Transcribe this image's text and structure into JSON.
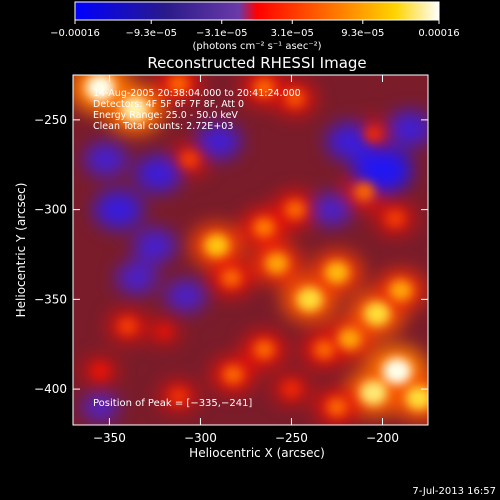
{
  "chart_data": {
    "type": "heatmap",
    "title": "Reconstructed RHESSI Image",
    "xlabel": "Heliocentric X (arcsec)",
    "ylabel": "Heliocentric Y (arcsec)",
    "xlim": [
      -370,
      -175
    ],
    "ylim": [
      -420,
      -225
    ],
    "xticks": [
      -350,
      -300,
      -250,
      -200
    ],
    "yticks": [
      -250,
      -300,
      -350,
      -400
    ],
    "xtick_labels": [
      "−350",
      "−300",
      "−250",
      "−200"
    ],
    "ytick_labels": [
      "−250",
      "−300",
      "−350",
      "−400"
    ],
    "colorbar": {
      "range": [
        -0.00016,
        0.00016
      ],
      "ticks": [
        -0.00016,
        -9.3e-05,
        -3.1e-05,
        3.1e-05,
        9.3e-05,
        0.00016
      ],
      "tick_labels": [
        "−0.00016",
        "−9.3e−05",
        "−3.1e−05",
        "3.1e−05",
        "9.3e−05",
        "0.00016"
      ],
      "units": "(photons cm⁻² s⁻¹ asec⁻²)"
    },
    "annotations": [
      "14-Aug-2005 20:38:04.000 to 20:41:24.000",
      "Detectors: 4F 5F 6F 7F 8F, Att 0",
      "Energy Range: 25.0 - 50.0 keV",
      "Clean    Total counts: 2.72E+03"
    ],
    "peak_label": "Position of Peak = [−335,−241]",
    "blobs": [
      {
        "x": -355,
        "y": -232,
        "v": 1.0
      },
      {
        "x": -336,
        "y": -244,
        "v": 0.95
      },
      {
        "x": -312,
        "y": -230,
        "v": 0.55
      },
      {
        "x": -306,
        "y": -272,
        "v": 0.45
      },
      {
        "x": -265,
        "y": -232,
        "v": 0.55
      },
      {
        "x": -248,
        "y": -238,
        "v": 0.5
      },
      {
        "x": -291,
        "y": -320,
        "v": 0.78
      },
      {
        "x": -283,
        "y": -338,
        "v": 0.55
      },
      {
        "x": -265,
        "y": -310,
        "v": 0.6
      },
      {
        "x": -258,
        "y": -330,
        "v": 0.7
      },
      {
        "x": -248,
        "y": -300,
        "v": 0.55
      },
      {
        "x": -240,
        "y": -350,
        "v": 0.85
      },
      {
        "x": -225,
        "y": -335,
        "v": 0.75
      },
      {
        "x": -218,
        "y": -372,
        "v": 0.7
      },
      {
        "x": -232,
        "y": -378,
        "v": 0.55
      },
      {
        "x": -203,
        "y": -358,
        "v": 0.85
      },
      {
        "x": -190,
        "y": -345,
        "v": 0.7
      },
      {
        "x": -192,
        "y": -390,
        "v": 1.0
      },
      {
        "x": -205,
        "y": -402,
        "v": 0.9
      },
      {
        "x": -180,
        "y": -405,
        "v": 0.85
      },
      {
        "x": -225,
        "y": -410,
        "v": 0.55
      },
      {
        "x": -265,
        "y": -378,
        "v": 0.55
      },
      {
        "x": -282,
        "y": -392,
        "v": 0.55
      },
      {
        "x": -250,
        "y": -400,
        "v": 0.4
      },
      {
        "x": -312,
        "y": -404,
        "v": 0.42
      },
      {
        "x": -340,
        "y": -365,
        "v": 0.45
      },
      {
        "x": -355,
        "y": -390,
        "v": 0.35
      },
      {
        "x": -320,
        "y": -368,
        "v": 0.3
      },
      {
        "x": -210,
        "y": -290,
        "v": 0.55
      },
      {
        "x": -193,
        "y": -305,
        "v": 0.45
      },
      {
        "x": -205,
        "y": -258,
        "v": 0.4
      },
      {
        "x": -345,
        "y": -300,
        "v": -0.6
      },
      {
        "x": -323,
        "y": -280,
        "v": -0.55
      },
      {
        "x": -290,
        "y": -262,
        "v": -0.5
      },
      {
        "x": -352,
        "y": -272,
        "v": -0.45
      },
      {
        "x": -325,
        "y": -320,
        "v": -0.45
      },
      {
        "x": -308,
        "y": -348,
        "v": -0.4
      },
      {
        "x": -200,
        "y": -278,
        "v": -0.85
      },
      {
        "x": -218,
        "y": -262,
        "v": -0.55
      },
      {
        "x": -185,
        "y": -255,
        "v": -0.5
      },
      {
        "x": -228,
        "y": -300,
        "v": -0.4
      },
      {
        "x": -335,
        "y": -338,
        "v": -0.4
      },
      {
        "x": -355,
        "y": -410,
        "v": -0.3
      }
    ]
  },
  "footer": {
    "timestamp": "7-Jul-2013 16:57"
  }
}
